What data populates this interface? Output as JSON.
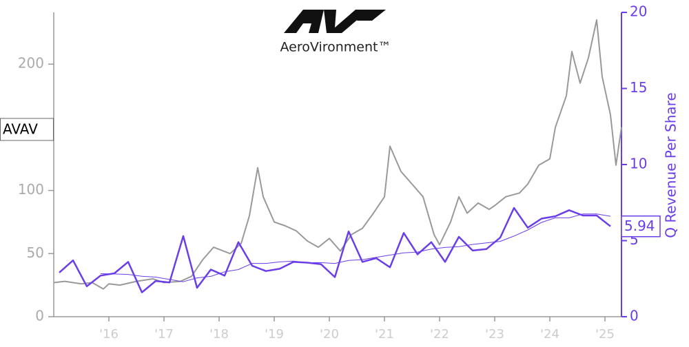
{
  "chart_data": {
    "type": "line",
    "logo_text": "AeroVironment™",
    "y2label": "Q Revenue Per Share",
    "xlim": [
      2015.0,
      2025.3
    ],
    "xticks": [
      {
        "value": 2016,
        "label": "'16"
      },
      {
        "value": 2017,
        "label": "'17"
      },
      {
        "value": 2018,
        "label": "'18"
      },
      {
        "value": 2019,
        "label": "'19"
      },
      {
        "value": 2020,
        "label": "'20"
      },
      {
        "value": 2021,
        "label": "'21"
      },
      {
        "value": 2022,
        "label": "'22"
      },
      {
        "value": 2023,
        "label": "'23"
      },
      {
        "value": 2024,
        "label": "'24"
      },
      {
        "value": 2025,
        "label": "'25"
      }
    ],
    "ylim": [
      0,
      241
    ],
    "yticks": [
      0,
      50,
      100,
      200
    ],
    "y2lim": [
      0,
      20
    ],
    "y2ticks": [
      0,
      5,
      10,
      15,
      20
    ],
    "series": [
      {
        "name": "AVAV",
        "color": "#999999",
        "x": [
          2015.0,
          2015.2,
          2015.5,
          2015.7,
          2015.9,
          2016.0,
          2016.2,
          2016.5,
          2016.8,
          2017.0,
          2017.3,
          2017.5,
          2017.7,
          2017.9,
          2018.2,
          2018.4,
          2018.55,
          2018.7,
          2018.8,
          2019.0,
          2019.2,
          2019.4,
          2019.6,
          2019.8,
          2020.0,
          2020.2,
          2020.4,
          2020.6,
          2020.8,
          2021.0,
          2021.1,
          2021.3,
          2021.5,
          2021.7,
          2021.9,
          2022.0,
          2022.2,
          2022.35,
          2022.5,
          2022.7,
          2022.9,
          2023.0,
          2023.2,
          2023.45,
          2023.6,
          2023.8,
          2024.0,
          2024.1,
          2024.3,
          2024.4,
          2024.55,
          2024.7,
          2024.85,
          2024.95,
          2025.1,
          2025.2,
          2025.3
        ],
        "values": [
          27,
          28,
          26,
          27,
          22,
          26,
          25,
          28,
          30,
          27,
          28,
          32,
          45,
          55,
          50,
          58,
          80,
          118,
          95,
          75,
          72,
          68,
          60,
          55,
          62,
          52,
          65,
          70,
          82,
          95,
          135,
          115,
          105,
          95,
          65,
          57,
          75,
          95,
          82,
          90,
          85,
          88,
          95,
          98,
          105,
          120,
          125,
          150,
          175,
          210,
          185,
          205,
          235,
          190,
          160,
          120,
          150
        ]
      },
      {
        "color": "#6a3de8",
        "axis": "y2",
        "x": [
          2015.1,
          2015.35,
          2015.6,
          2015.85,
          2016.1,
          2016.35,
          2016.6,
          2016.85,
          2017.1,
          2017.35,
          2017.6,
          2017.85,
          2018.1,
          2018.35,
          2018.6,
          2018.85,
          2019.1,
          2019.35,
          2019.6,
          2019.85,
          2020.1,
          2020.35,
          2020.6,
          2020.85,
          2021.1,
          2021.35,
          2021.6,
          2021.85,
          2022.1,
          2022.35,
          2022.6,
          2022.85,
          2023.1,
          2023.35,
          2023.6,
          2023.85,
          2024.1,
          2024.35,
          2024.6,
          2024.85,
          2025.1
        ],
        "values": [
          2.9,
          3.7,
          2.0,
          2.7,
          2.85,
          3.6,
          1.6,
          2.35,
          2.25,
          5.3,
          1.9,
          3.1,
          2.7,
          4.9,
          3.35,
          3.0,
          3.15,
          3.6,
          3.55,
          3.45,
          2.6,
          5.6,
          3.6,
          3.85,
          3.25,
          5.5,
          4.1,
          4.9,
          3.6,
          5.25,
          4.35,
          4.45,
          5.2,
          7.15,
          5.85,
          6.45,
          6.6,
          7.0,
          6.65,
          6.65,
          5.94
        ]
      },
      {
        "color": "#6a3de8",
        "axis": "y2",
        "x": [
          2015.85,
          2016.1,
          2016.35,
          2016.6,
          2016.85,
          2017.1,
          2017.35,
          2017.6,
          2017.85,
          2018.1,
          2018.35,
          2018.6,
          2018.85,
          2019.1,
          2019.35,
          2019.6,
          2019.85,
          2020.1,
          2020.35,
          2020.6,
          2020.85,
          2021.1,
          2021.35,
          2021.6,
          2021.85,
          2022.1,
          2022.35,
          2022.6,
          2022.85,
          2023.1,
          2023.35,
          2023.6,
          2023.85,
          2024.1,
          2024.35,
          2024.6,
          2024.85,
          2025.1
        ],
        "values": [
          2.83,
          2.81,
          2.78,
          2.66,
          2.6,
          2.45,
          2.3,
          2.55,
          2.65,
          2.95,
          3.1,
          3.5,
          3.5,
          3.6,
          3.65,
          3.55,
          3.55,
          3.5,
          3.7,
          3.75,
          3.9,
          4.05,
          4.2,
          4.25,
          4.45,
          4.55,
          4.6,
          4.75,
          4.85,
          4.95,
          5.3,
          5.7,
          6.2,
          6.5,
          6.5,
          6.75,
          6.75,
          6.6
        ]
      }
    ]
  }
}
